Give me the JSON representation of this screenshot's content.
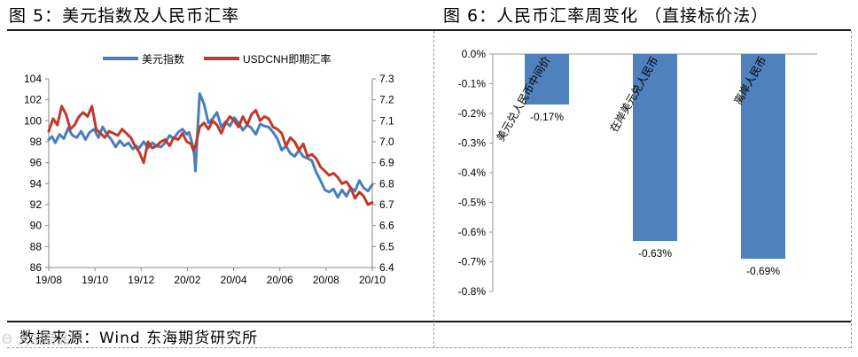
{
  "left_panel": {
    "title": "图 5：美元指数及人民币汇率",
    "chart_data": {
      "type": "line",
      "title": "",
      "x_tick_labels": [
        "19/08",
        "19/10",
        "19/12",
        "20/02",
        "20/04",
        "20/06",
        "20/08",
        "20/10"
      ],
      "y_left_lim": [
        86,
        104
      ],
      "y_left_ticks": [
        86,
        88,
        90,
        92,
        94,
        96,
        98,
        100,
        102,
        104
      ],
      "y_right_lim": [
        6.4,
        7.3
      ],
      "y_right_ticks": [
        "6.4",
        "6.5",
        "6.6",
        "6.7",
        "6.8",
        "6.9",
        "7.0",
        "7.1",
        "7.2",
        "7.3"
      ],
      "legend_position": "top-center",
      "series": [
        {
          "name": "美元指数",
          "axis": "left",
          "color": "#4a7dbf",
          "x": [
            0,
            0.15,
            0.3,
            0.5,
            0.7,
            0.9,
            1.1,
            1.3,
            1.5,
            1.7,
            1.9,
            2.1,
            2.3,
            2.5,
            2.7,
            2.9,
            3.1,
            3.3,
            3.5,
            3.7,
            3.9,
            4.05,
            4.2,
            4.4,
            4.6,
            4.8,
            5.0,
            5.2,
            5.4,
            5.6,
            5.8,
            6.0,
            6.2,
            6.4,
            6.5,
            6.6,
            6.7,
            6.75,
            6.8,
            6.9,
            7.0,
            7.2,
            7.4,
            7.6,
            7.8,
            8.0,
            8.2,
            8.4,
            8.6,
            8.8,
            9.0,
            9.2,
            9.4,
            9.6,
            9.8,
            10.0,
            10.2,
            10.4,
            10.6,
            10.8,
            11.0,
            11.2,
            11.4,
            11.6,
            11.8,
            12.0,
            12.2,
            12.4,
            12.6,
            12.8,
            13.0,
            13.2,
            13.4,
            13.6,
            13.8,
            14.0,
            14.2,
            14.4,
            14.6,
            14.8,
            15.0
          ],
          "values": [
            98.2,
            98.5,
            97.9,
            98.7,
            98.3,
            99.3,
            98.6,
            98.4,
            99.0,
            98.2,
            98.9,
            99.2,
            98.4,
            99.4,
            98.7,
            98.2,
            97.5,
            98.1,
            97.6,
            97.9,
            97.3,
            97.6,
            97.4,
            98.0,
            97.4,
            97.9,
            97.6,
            97.5,
            97.9,
            98.6,
            98.3,
            98.9,
            99.2,
            98.7,
            98.9,
            98.2,
            97.4,
            96.6,
            95.2,
            99.1,
            102.6,
            101.6,
            99.8,
            100.2,
            100.8,
            99.4,
            99.9,
            99.5,
            100.3,
            99.8,
            99.1,
            99.6,
            99.3,
            98.7,
            99.7,
            99.5,
            99.4,
            98.9,
            98.3,
            97.2,
            97.6,
            96.9,
            96.6,
            97.2,
            96.6,
            96.4,
            96.2,
            95.1,
            94.3,
            93.4,
            93.2,
            93.5,
            92.7,
            93.4,
            92.8,
            93.6,
            93.3,
            94.3,
            93.6,
            93.3,
            93.9
          ]
        },
        {
          "name": "USDCNH即期汇率",
          "axis": "right",
          "color": "#c0392b",
          "x": [
            0,
            0.2,
            0.4,
            0.6,
            0.8,
            1.0,
            1.2,
            1.4,
            1.6,
            1.8,
            2.0,
            2.2,
            2.4,
            2.6,
            2.8,
            3.0,
            3.2,
            3.4,
            3.6,
            3.8,
            4.0,
            4.2,
            4.4,
            4.6,
            4.8,
            5.0,
            5.2,
            5.4,
            5.6,
            5.8,
            6.0,
            6.2,
            6.4,
            6.6,
            6.7,
            6.8,
            7.0,
            7.2,
            7.4,
            7.6,
            7.8,
            8.0,
            8.2,
            8.4,
            8.6,
            8.8,
            9.0,
            9.2,
            9.4,
            9.6,
            9.8,
            10.0,
            10.2,
            10.4,
            10.6,
            10.8,
            11.0,
            11.2,
            11.4,
            11.6,
            11.8,
            12.0,
            12.2,
            12.4,
            12.6,
            12.8,
            13.0,
            13.2,
            13.4,
            13.6,
            13.8,
            14.0,
            14.2,
            14.4,
            14.6,
            14.8,
            15.0
          ],
          "values": [
            7.05,
            7.11,
            7.08,
            7.17,
            7.13,
            7.06,
            7.08,
            7.12,
            7.14,
            7.12,
            7.17,
            7.06,
            7.04,
            7.02,
            7.05,
            7.04,
            7.03,
            7.06,
            7.04,
            7.02,
            6.98,
            6.95,
            6.9,
            7.0,
            6.97,
            6.98,
            7.0,
            7.01,
            6.98,
            7.02,
            7.01,
            7.04,
            7.0,
            6.99,
            6.96,
            6.98,
            7.07,
            7.09,
            7.06,
            7.1,
            7.08,
            7.04,
            7.09,
            7.12,
            7.1,
            7.07,
            7.12,
            7.08,
            7.13,
            7.15,
            7.1,
            7.12,
            7.11,
            7.07,
            7.06,
            7.04,
            6.98,
            7.02,
            7.0,
            6.96,
            6.99,
            6.93,
            6.94,
            6.92,
            6.88,
            6.86,
            6.84,
            6.85,
            6.83,
            6.8,
            6.81,
            6.78,
            6.73,
            6.76,
            6.74,
            6.7,
            6.71
          ]
        }
      ]
    }
  },
  "right_panel": {
    "title": "图 6：人民币汇率周变化    （直接标价法）",
    "chart_data": {
      "type": "bar",
      "title": "",
      "categories": [
        "美元兑人民币中间价",
        "在岸美元兑人民币",
        "离岸人民币"
      ],
      "values": [
        -0.17,
        -0.63,
        -0.69
      ],
      "value_labels": [
        "-0.17%",
        "-0.63%",
        "-0.69%"
      ],
      "ylim": [
        -0.8,
        0.0
      ],
      "y_ticks": [
        0.0,
        -0.1,
        -0.2,
        -0.3,
        -0.4,
        -0.5,
        -0.6,
        -0.7,
        -0.8
      ],
      "y_tick_labels": [
        "0.0%",
        "-0.1%",
        "-0.2%",
        "-0.3%",
        "-0.4%",
        "-0.5%",
        "-0.6%",
        "-0.7%",
        "-0.8%"
      ],
      "bar_color": "#4f81bd"
    }
  },
  "footer": {
    "source": "数据来源：Wind   东海期货研究所",
    "watermark": "Θ 大宗商品"
  }
}
